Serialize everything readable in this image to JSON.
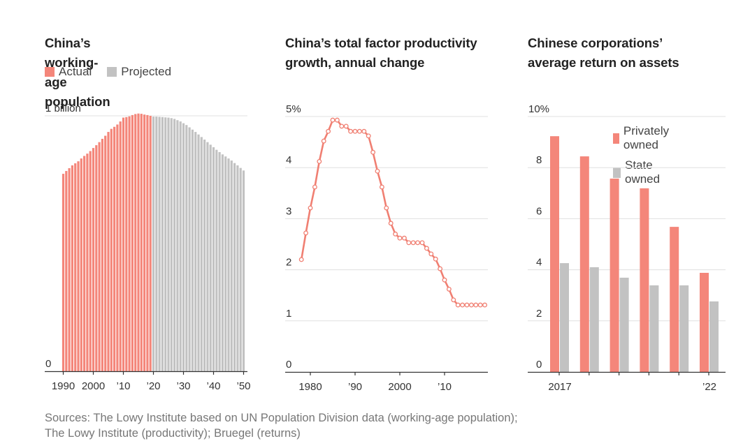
{
  "colors": {
    "actual": "#f4867a",
    "projected": "#c2c2c2",
    "line": "#f07f72",
    "grid": "#e0e0e0",
    "axis": "#333333"
  },
  "footer": {
    "line1": "Sources: The Lowy Institute based on UN Population Division data (working-age population);",
    "line2": "The Lowy Institute (productivity); Bruegel (returns)"
  },
  "chart_data": [
    {
      "type": "bar",
      "title": "China’s working-age population",
      "legend": [
        {
          "name": "Actual",
          "color_key": "actual"
        },
        {
          "name": "Projected",
          "color_key": "projected"
        }
      ],
      "legend_placement": "top-left",
      "ylabel": "",
      "unit": "billion",
      "ylim": [
        0,
        1
      ],
      "yticks": [
        {
          "value": 0,
          "label": "0"
        },
        {
          "value": 1,
          "label": "1 billion"
        }
      ],
      "xticks": [
        {
          "value": 1990,
          "label": "1990"
        },
        {
          "value": 2000,
          "label": "2000"
        },
        {
          "value": 2010,
          "label": "’10"
        },
        {
          "value": 2020,
          "label": "’20"
        },
        {
          "value": 2030,
          "label": "’30"
        },
        {
          "value": 2040,
          "label": "’40"
        },
        {
          "value": 2050,
          "label": "’50"
        }
      ],
      "x_start": 1990,
      "projected_from": 2020,
      "values": [
        0.773,
        0.784,
        0.795,
        0.806,
        0.814,
        0.822,
        0.833,
        0.843,
        0.852,
        0.862,
        0.874,
        0.885,
        0.897,
        0.91,
        0.922,
        0.937,
        0.949,
        0.957,
        0.966,
        0.978,
        0.993,
        0.995,
        0.998,
        1.003,
        1.007,
        1.009,
        1.008,
        1.005,
        1.003,
        1.0,
        0.997,
        0.997,
        0.996,
        0.995,
        0.994,
        0.993,
        0.991,
        0.988,
        0.983,
        0.978,
        0.971,
        0.964,
        0.955,
        0.946,
        0.937,
        0.927,
        0.917,
        0.907,
        0.897,
        0.887,
        0.877,
        0.867,
        0.858,
        0.849,
        0.841,
        0.833,
        0.825,
        0.815,
        0.806,
        0.796,
        0.786
      ],
      "grid": true
    },
    {
      "type": "line",
      "title": "China’s total factor productivity growth, annual change",
      "ylabel": "",
      "ylim": [
        0,
        5
      ],
      "yticks": [
        {
          "value": 0,
          "label": "0"
        },
        {
          "value": 1,
          "label": "1"
        },
        {
          "value": 2,
          "label": "2"
        },
        {
          "value": 3,
          "label": "3"
        },
        {
          "value": 4,
          "label": "4"
        },
        {
          "value": 5,
          "label": "5%"
        }
      ],
      "xlim": [
        1974.4,
        2020.2
      ],
      "xticks": [
        {
          "value": 1980,
          "label": "1980"
        },
        {
          "value": 1990,
          "label": "’90"
        },
        {
          "value": 2000,
          "label": "2000"
        },
        {
          "value": 2010,
          "label": "’10"
        }
      ],
      "x": [
        1978,
        1979,
        1980,
        1981,
        1982,
        1983,
        1984,
        1985,
        1986,
        1987,
        1988,
        1989,
        1990,
        1991,
        1992,
        1993,
        1994,
        1995,
        1996,
        1997,
        1998,
        1999,
        2000,
        2001,
        2002,
        2003,
        2004,
        2005,
        2006,
        2007,
        2008,
        2009,
        2010,
        2011,
        2012,
        2013,
        2014,
        2015,
        2016,
        2017,
        2018,
        2019
      ],
      "values": [
        2.2,
        2.72,
        3.21,
        3.62,
        4.12,
        4.52,
        4.71,
        4.93,
        4.93,
        4.81,
        4.81,
        4.71,
        4.71,
        4.71,
        4.71,
        4.62,
        4.3,
        3.93,
        3.62,
        3.21,
        2.91,
        2.7,
        2.62,
        2.62,
        2.53,
        2.53,
        2.53,
        2.53,
        2.42,
        2.31,
        2.21,
        2.02,
        1.8,
        1.62,
        1.41,
        1.31,
        1.31,
        1.31,
        1.31,
        1.31,
        1.31,
        1.31
      ],
      "grid": true
    },
    {
      "type": "bar",
      "title": "Chinese corporations’ average return on assets",
      "legend": [
        {
          "name": "Privately owned",
          "color_key": "actual"
        },
        {
          "name": "State owned",
          "color_key": "projected"
        }
      ],
      "legend_placement": "top-right",
      "ylim": [
        0,
        10
      ],
      "yticks": [
        {
          "value": 0,
          "label": "0"
        },
        {
          "value": 2,
          "label": "2"
        },
        {
          "value": 4,
          "label": "4"
        },
        {
          "value": 6,
          "label": "6"
        },
        {
          "value": 8,
          "label": "8"
        },
        {
          "value": 10,
          "label": "10%"
        }
      ],
      "categories": [
        "2017",
        "2018",
        "2019",
        "2020",
        "2021",
        "2022"
      ],
      "xtick_labels": [
        "2017",
        "",
        "",
        "",
        "",
        "’22"
      ],
      "series": [
        {
          "name": "Privately owned",
          "values": [
            9.23,
            8.44,
            7.57,
            7.19,
            5.68,
            3.88
          ]
        },
        {
          "name": "State owned",
          "values": [
            4.26,
            4.1,
            3.69,
            3.39,
            3.39,
            2.76
          ]
        }
      ],
      "grid": true
    }
  ]
}
